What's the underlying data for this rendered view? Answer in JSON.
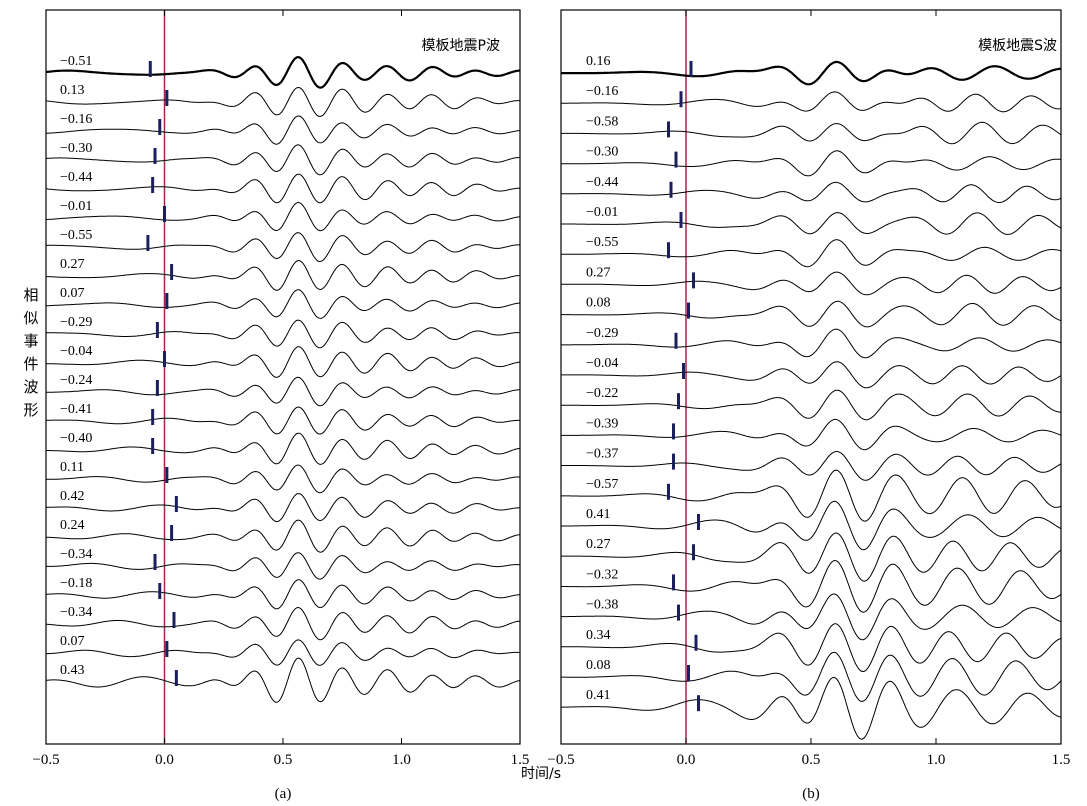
{
  "ylabel": "相似事件波形",
  "xlabel": "时间/s",
  "colors": {
    "trace": "#000000",
    "zero_line": "#a0284a",
    "marker": "#1c1f5e",
    "frame": "#000000"
  },
  "chart_data": [
    {
      "type": "line",
      "panel": "(a)",
      "title": "模板地震P波",
      "xlim": [
        -0.5,
        1.5
      ],
      "xticks": [
        -0.5,
        0.0,
        0.5,
        1.0,
        1.5
      ],
      "xtick_labels": [
        "-0.5",
        "0.0",
        "0.5",
        "1.0",
        "1.5"
      ],
      "template_label": "-0.51",
      "template_pick": -0.06,
      "labels": [
        "0.13",
        "-0.16",
        "-0.30",
        "-0.44",
        "-0.01",
        "-0.55",
        "0.27",
        "0.07",
        "-0.29",
        "-0.04",
        "-0.24",
        "-0.41",
        "-0.40",
        "0.11",
        "0.42",
        "0.24",
        "-0.34",
        "-0.18",
        "-0.34",
        "0.07",
        "0.43"
      ],
      "picks": [
        0.01,
        -0.02,
        -0.04,
        -0.05,
        0.0,
        -0.07,
        0.03,
        0.01,
        -0.03,
        0.0,
        -0.03,
        -0.05,
        -0.05,
        0.01,
        0.05,
        0.03,
        -0.04,
        -0.02,
        0.04,
        0.01,
        0.05
      ]
    },
    {
      "type": "line",
      "panel": "(b)",
      "title": "模板地震S波",
      "xlim": [
        -0.5,
        1.5
      ],
      "xticks": [
        -0.5,
        0.0,
        0.5,
        1.0,
        1.5
      ],
      "xtick_labels": [
        "-0.5",
        "0.0",
        "0.5",
        "1.0",
        "1.5"
      ],
      "template_label": "0.16",
      "template_pick": 0.02,
      "labels": [
        "-0.16",
        "-0.58",
        "-0.30",
        "-0.44",
        "-0.01",
        "-0.55",
        "0.27",
        "0.08",
        "-0.29",
        "-0.04",
        "-0.22",
        "-0.39",
        "-0.37",
        "-0.57",
        "0.41",
        "0.27",
        "-0.32",
        "-0.38",
        "0.34",
        "0.08",
        "0.41"
      ],
      "picks": [
        -0.02,
        -0.07,
        -0.04,
        -0.06,
        -0.02,
        -0.07,
        0.03,
        0.01,
        -0.04,
        -0.01,
        -0.03,
        -0.05,
        -0.05,
        -0.07,
        0.05,
        0.03,
        -0.05,
        -0.03,
        0.04,
        0.01,
        0.05
      ]
    }
  ]
}
